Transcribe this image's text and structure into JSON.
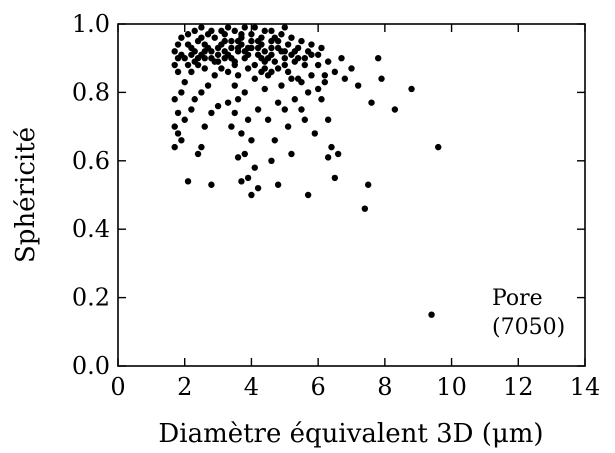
{
  "chart_data": {
    "type": "scatter",
    "title": "",
    "xlabel": "Diamètre équivalent 3D (μm)",
    "ylabel": "Sphéricité",
    "xlim": [
      0,
      14
    ],
    "ylim": [
      0,
      1
    ],
    "xticks": [
      "0",
      "2",
      "4",
      "6",
      "8",
      "10",
      "12",
      "14"
    ],
    "yticks": [
      "0.0",
      "0.2",
      "0.4",
      "0.6",
      "0.8",
      "1.0"
    ],
    "grid": false,
    "point_color": "#000000",
    "annotation": {
      "line1": "Pore",
      "line2": "(7050)"
    },
    "series": [
      {
        "points": [
          [
            9.4,
            0.15
          ],
          [
            7.4,
            0.46
          ],
          [
            7.5,
            0.53
          ],
          [
            9.6,
            0.64
          ],
          [
            8.3,
            0.75
          ],
          [
            8.8,
            0.81
          ],
          [
            7.9,
            0.84
          ],
          [
            7.8,
            0.9
          ],
          [
            7.6,
            0.77
          ],
          [
            7.2,
            0.82
          ],
          [
            6.7,
            0.9
          ],
          [
            6.6,
            0.62
          ],
          [
            6.5,
            0.55
          ],
          [
            6.3,
            0.61
          ],
          [
            6.4,
            0.64
          ],
          [
            6.3,
            0.72
          ],
          [
            6.1,
            0.78
          ],
          [
            6.0,
            0.81
          ],
          [
            6.2,
            0.85
          ],
          [
            6.0,
            0.88
          ],
          [
            5.8,
            0.91
          ],
          [
            5.7,
            0.5
          ],
          [
            5.9,
            0.68
          ],
          [
            5.6,
            0.72
          ],
          [
            5.5,
            0.75
          ],
          [
            5.7,
            0.8
          ],
          [
            5.4,
            0.84
          ],
          [
            5.6,
            0.88
          ],
          [
            5.3,
            0.92
          ],
          [
            5.2,
            0.62
          ],
          [
            5.1,
            0.7
          ],
          [
            5.0,
            0.75
          ],
          [
            5.3,
            0.78
          ],
          [
            4.9,
            0.82
          ],
          [
            5.0,
            0.88
          ],
          [
            4.8,
            0.53
          ],
          [
            4.6,
            0.6
          ],
          [
            4.7,
            0.66
          ],
          [
            4.5,
            0.72
          ],
          [
            4.8,
            0.77
          ],
          [
            4.4,
            0.81
          ],
          [
            4.6,
            0.86
          ],
          [
            4.3,
            0.9
          ],
          [
            4.0,
            0.5
          ],
          [
            4.2,
            0.52
          ],
          [
            3.9,
            0.55
          ],
          [
            4.1,
            0.58
          ],
          [
            3.8,
            0.62
          ],
          [
            4.0,
            0.66
          ],
          [
            3.7,
            0.68
          ],
          [
            3.9,
            0.72
          ],
          [
            4.2,
            0.75
          ],
          [
            3.6,
            0.78
          ],
          [
            3.8,
            0.8
          ],
          [
            4.1,
            0.84
          ],
          [
            3.6,
            0.61
          ],
          [
            3.7,
            0.54
          ],
          [
            3.4,
            0.7
          ],
          [
            3.5,
            0.74
          ],
          [
            3.3,
            0.77
          ],
          [
            3.5,
            0.82
          ],
          [
            2.8,
            0.53
          ],
          [
            2.1,
            0.54
          ],
          [
            2.4,
            0.62
          ],
          [
            2.5,
            0.64
          ],
          [
            2.6,
            0.7
          ],
          [
            2.8,
            0.74
          ],
          [
            3.0,
            0.76
          ],
          [
            2.3,
            0.78
          ],
          [
            2.5,
            0.8
          ],
          [
            2.7,
            0.82
          ],
          [
            2.0,
            0.72
          ],
          [
            1.9,
            0.66
          ],
          [
            1.8,
            0.68
          ],
          [
            2.2,
            0.75
          ],
          [
            1.7,
            0.64
          ],
          [
            1.7,
            0.7
          ],
          [
            1.8,
            0.74
          ],
          [
            1.7,
            0.78
          ],
          [
            1.9,
            0.8
          ],
          [
            2.0,
            0.83
          ],
          [
            1.8,
            0.86
          ],
          [
            1.7,
            0.88
          ],
          [
            1.8,
            0.9
          ],
          [
            1.7,
            0.92
          ],
          [
            1.8,
            0.94
          ],
          [
            1.9,
            0.96
          ],
          [
            2.1,
            0.97
          ],
          [
            2.3,
            0.98
          ],
          [
            2.5,
            0.99
          ],
          [
            2.2,
            0.86
          ],
          [
            2.4,
            0.88
          ],
          [
            2.6,
            0.87
          ],
          [
            2.9,
            0.85
          ],
          [
            3.1,
            0.87
          ],
          [
            3.3,
            0.86
          ],
          [
            3.6,
            0.85
          ],
          [
            4.5,
            0.85
          ],
          [
            4.8,
            0.87
          ],
          [
            5.1,
            0.86
          ],
          [
            2.0,
            0.9
          ],
          [
            2.3,
            0.92
          ],
          [
            2.6,
            0.94
          ],
          [
            2.9,
            0.96
          ],
          [
            3.2,
            0.97
          ],
          [
            3.5,
            0.98
          ],
          [
            3.8,
            0.99
          ],
          [
            4.1,
            0.99
          ],
          [
            4.4,
            0.98
          ],
          [
            4.7,
            0.96
          ],
          [
            2.2,
            0.93
          ],
          [
            2.5,
            0.91
          ],
          [
            2.8,
            0.92
          ],
          [
            3.1,
            0.94
          ],
          [
            3.4,
            0.95
          ],
          [
            3.7,
            0.96
          ],
          [
            4.0,
            0.95
          ],
          [
            4.3,
            0.94
          ],
          [
            4.6,
            0.93
          ],
          [
            4.9,
            0.92
          ],
          [
            2.4,
            0.95
          ],
          [
            2.7,
            0.97
          ],
          [
            3.0,
            0.93
          ],
          [
            3.3,
            0.91
          ],
          [
            3.6,
            0.92
          ],
          [
            3.9,
            0.93
          ],
          [
            4.2,
            0.91
          ],
          [
            4.5,
            0.9
          ],
          [
            4.8,
            0.95
          ],
          [
            5.1,
            0.94
          ],
          [
            2.1,
            0.88
          ],
          [
            2.9,
            0.89
          ],
          [
            3.2,
            0.9
          ],
          [
            3.5,
            0.89
          ],
          [
            3.8,
            0.9
          ],
          [
            4.1,
            0.88
          ],
          [
            4.4,
            0.87
          ],
          [
            4.7,
            0.89
          ],
          [
            5.0,
            0.9
          ],
          [
            5.4,
            0.93
          ],
          [
            2.6,
            0.9
          ],
          [
            3.0,
            0.91
          ],
          [
            3.4,
            0.93
          ],
          [
            3.7,
            0.94
          ],
          [
            4.0,
            0.97
          ],
          [
            4.3,
            0.96
          ],
          [
            4.6,
            0.95
          ],
          [
            3.1,
            0.98
          ],
          [
            3.9,
            0.91
          ],
          [
            4.2,
            0.93
          ],
          [
            2.3,
            0.89
          ],
          [
            2.7,
            0.93
          ],
          [
            3.2,
            0.92
          ],
          [
            3.6,
            0.95
          ],
          [
            4.4,
            0.92
          ],
          [
            4.9,
            0.97
          ],
          [
            5.2,
            0.96
          ],
          [
            5.5,
            0.95
          ],
          [
            5.8,
            0.94
          ],
          [
            6.1,
            0.93
          ],
          [
            1.9,
            0.91
          ],
          [
            2.1,
            0.94
          ],
          [
            2.5,
            0.96
          ],
          [
            2.8,
            0.98
          ],
          [
            3.3,
            0.99
          ],
          [
            3.7,
            0.97
          ],
          [
            4.6,
            0.98
          ],
          [
            5.0,
            0.99
          ],
          [
            5.3,
            0.89
          ],
          [
            5.6,
            0.9
          ],
          [
            2.2,
            0.91
          ],
          [
            2.4,
            0.9
          ],
          [
            2.6,
            0.92
          ],
          [
            2.8,
            0.9
          ],
          [
            3.0,
            0.89
          ],
          [
            3.2,
            0.95
          ],
          [
            3.4,
            0.9
          ],
          [
            3.6,
            0.93
          ],
          [
            3.8,
            0.92
          ],
          [
            4.0,
            0.93
          ],
          [
            4.2,
            0.95
          ],
          [
            4.4,
            0.89
          ],
          [
            4.6,
            0.91
          ],
          [
            4.8,
            0.93
          ],
          [
            5.0,
            0.92
          ],
          [
            5.2,
            0.91
          ],
          [
            5.4,
            0.9
          ],
          [
            5.7,
            0.92
          ],
          [
            6.0,
            0.91
          ],
          [
            6.3,
            0.89
          ],
          [
            3.5,
            0.88
          ],
          [
            3.9,
            0.87
          ],
          [
            4.3,
            0.86
          ],
          [
            5.2,
            0.84
          ],
          [
            5.5,
            0.83
          ],
          [
            5.8,
            0.85
          ],
          [
            6.2,
            0.83
          ],
          [
            6.5,
            0.86
          ],
          [
            6.8,
            0.84
          ],
          [
            7.0,
            0.87
          ]
        ]
      }
    ]
  }
}
